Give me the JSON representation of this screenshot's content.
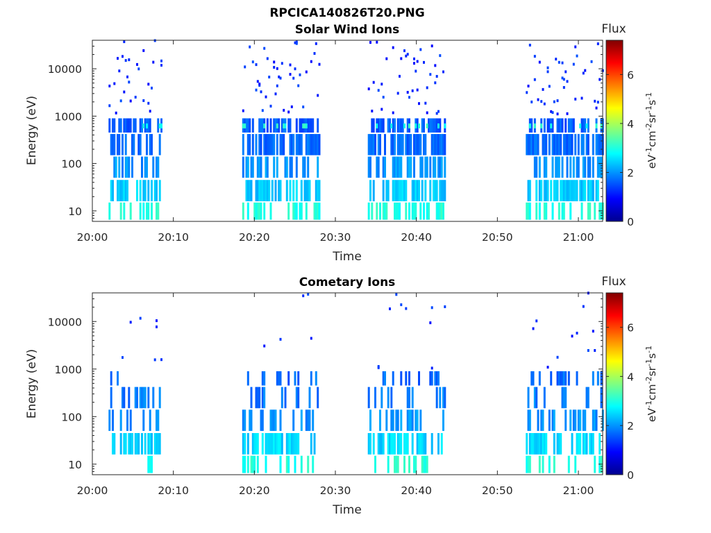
{
  "figure_title": "RPCICA140826T20.PNG",
  "chart_data": [
    {
      "type": "heatmap",
      "title": "Solar Wind Ions",
      "xlabel": "Time",
      "ylabel": "Energy (eV)",
      "y_scale": "log",
      "ylim": [
        6,
        40000
      ],
      "xlim": [
        "20:00",
        "21:03"
      ],
      "x_ticks": [
        "20:00",
        "20:10",
        "20:20",
        "20:30",
        "20:40",
        "20:50",
        "21:00"
      ],
      "y_ticks": [
        "10",
        "100",
        "1000",
        "10000"
      ],
      "colorbar": {
        "label": "Flux",
        "units": "eV-1cm-2sr-1s-1",
        "range": [
          0,
          7.4
        ],
        "ticks": [
          "0",
          "2",
          "4",
          "6"
        ],
        "colormap": "jet"
      },
      "measurement_blocks": [
        {
          "start": "20:02",
          "end": "20:08.5"
        },
        {
          "start": "20:18.5",
          "end": "20:28"
        },
        {
          "start": "20:34",
          "end": "20:43.5"
        },
        {
          "start": "20:53.5",
          "end": "21:03"
        }
      ],
      "bands": [
        {
          "energy_eV": [
            6.5,
            15
          ],
          "flux": 3.0,
          "density": 0.4
        },
        {
          "energy_eV": [
            16,
            45
          ],
          "flux": 2.4,
          "density": 0.6
        },
        {
          "energy_eV": [
            50,
            140
          ],
          "flux": 2.0,
          "density": 0.55
        },
        {
          "energy_eV": [
            150,
            420
          ],
          "flux": 1.7,
          "density": 0.65
        },
        {
          "energy_eV": [
            450,
            900
          ],
          "flux": 1.6,
          "density": 0.55
        },
        {
          "energy_eV": [
            550,
            700
          ],
          "flux": 3.0,
          "density": 0.12
        },
        {
          "energy_eV": [
            1000,
            40000
          ],
          "flux": 1.2,
          "density": 0.42
        }
      ]
    },
    {
      "type": "heatmap",
      "title": "Cometary Ions",
      "xlabel": "Time",
      "ylabel": "Energy (eV)",
      "y_scale": "log",
      "ylim": [
        6,
        40000
      ],
      "xlim": [
        "20:00",
        "21:03"
      ],
      "x_ticks": [
        "20:00",
        "20:10",
        "20:20",
        "20:30",
        "20:40",
        "20:50",
        "21:00"
      ],
      "y_ticks": [
        "10",
        "100",
        "1000",
        "10000"
      ],
      "colorbar": {
        "label": "Flux",
        "units": "eV-1cm-2sr-1s-1",
        "range": [
          0,
          7.4
        ],
        "ticks": [
          "0",
          "2",
          "4",
          "6"
        ],
        "colormap": "jet"
      },
      "measurement_blocks": [
        {
          "start": "20:02",
          "end": "20:08.5"
        },
        {
          "start": "20:18.5",
          "end": "20:28"
        },
        {
          "start": "20:34",
          "end": "20:43.5"
        },
        {
          "start": "20:53.5",
          "end": "21:03"
        }
      ],
      "bands": [
        {
          "energy_eV": [
            6.5,
            15
          ],
          "flux": 3.0,
          "density": 0.25
        },
        {
          "energy_eV": [
            16,
            45
          ],
          "flux": 2.5,
          "density": 0.55
        },
        {
          "energy_eV": [
            50,
            140
          ],
          "flux": 2.0,
          "density": 0.4
        },
        {
          "energy_eV": [
            150,
            420
          ],
          "flux": 1.8,
          "density": 0.3
        },
        {
          "energy_eV": [
            450,
            900
          ],
          "flux": 1.7,
          "density": 0.25
        },
        {
          "energy_eV": [
            1000,
            40000
          ],
          "flux": 1.3,
          "density": 0.1
        }
      ]
    }
  ]
}
